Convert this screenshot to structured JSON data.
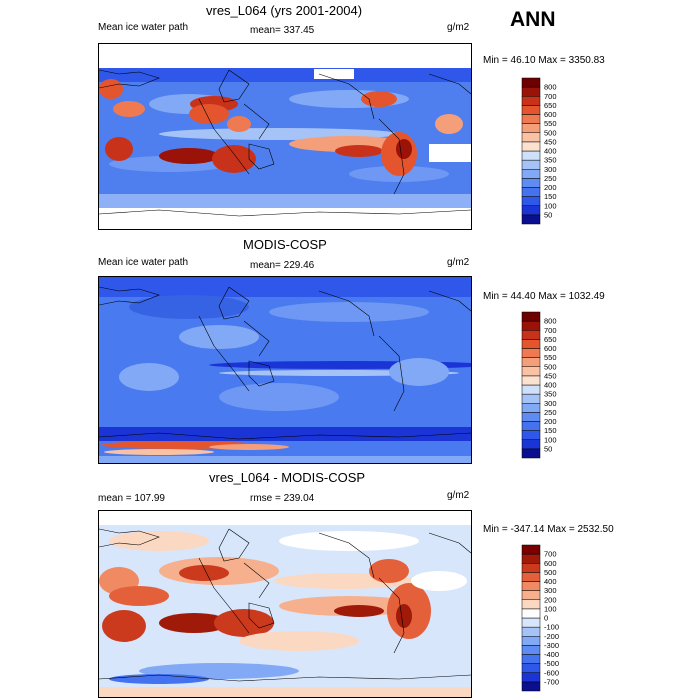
{
  "season": "ANN",
  "units": "g/m2",
  "panels": [
    {
      "title": "vres_L064 (yrs 2001-2004)",
      "left_label": "Mean ice water path",
      "mid_label": "mean= 337.45",
      "right_label": "g/m2",
      "minmax": "Min =  46.10 Max = 3350.83",
      "colorbar": {
        "levels": [
          "50",
          "100",
          "150",
          "200",
          "250",
          "300",
          "350",
          "400",
          "450",
          "500",
          "550",
          "600",
          "650",
          "700",
          "800"
        ],
        "colors": [
          "#0a0f8f",
          "#1a34d6",
          "#2f58ea",
          "#4572ee",
          "#5f8cf2",
          "#82a9f5",
          "#a6c3f8",
          "#cfe0fa",
          "#fbe2cf",
          "#f9c2a5",
          "#f59f7a",
          "#ef7a52",
          "#e4552e",
          "#c9321a",
          "#9a1208",
          "#6e0000"
        ]
      }
    },
    {
      "title": "MODIS-COSP",
      "left_label": "Mean ice water path",
      "mid_label": "mean= 229.46",
      "right_label": "g/m2",
      "minmax": "Min =  44.40 Max = 1032.49",
      "colorbar": {
        "levels": [
          "50",
          "100",
          "150",
          "200",
          "250",
          "300",
          "350",
          "400",
          "450",
          "500",
          "550",
          "600",
          "650",
          "700",
          "800"
        ],
        "colors": [
          "#0a0f8f",
          "#1a34d6",
          "#2f58ea",
          "#4572ee",
          "#5f8cf2",
          "#82a9f5",
          "#a6c3f8",
          "#cfe0fa",
          "#fbe2cf",
          "#f9c2a5",
          "#f59f7a",
          "#ef7a52",
          "#e4552e",
          "#c9321a",
          "#9a1208",
          "#6e0000"
        ]
      }
    },
    {
      "title": "vres_L064 - MODIS-COSP",
      "left_label": "mean = 107.99",
      "mid_label": "rmse = 239.04",
      "right_label": "g/m2",
      "minmax": "Min = -347.14 Max = 2532.50",
      "colorbar": {
        "levels": [
          "-700",
          "-600",
          "-500",
          "-400",
          "-300",
          "-200",
          "-100",
          "0",
          "100",
          "200",
          "300",
          "400",
          "500",
          "600",
          "700"
        ],
        "colors": [
          "#0a0f8f",
          "#1a34d6",
          "#2f58ea",
          "#4572ee",
          "#5f8cf2",
          "#82a9f5",
          "#a6c3f8",
          "#d8e6fb",
          "#ffffff",
          "#fbd8c2",
          "#f6b08e",
          "#ef8a62",
          "#e4603a",
          "#cc3a1e",
          "#a01a0a",
          "#7a0000"
        ]
      }
    }
  ],
  "chart_data": [
    {
      "type": "heatmap",
      "title": "vres_L064 (yrs 2001-2004)",
      "subtitle": "Mean ice water path",
      "mean": 337.45,
      "min": 46.1,
      "max": 3350.83,
      "units": "g/m2",
      "levels": [
        50,
        100,
        150,
        200,
        250,
        300,
        350,
        400,
        450,
        500,
        550,
        600,
        650,
        700,
        800
      ]
    },
    {
      "type": "heatmap",
      "title": "MODIS-COSP",
      "subtitle": "Mean ice water path",
      "mean": 229.46,
      "min": 44.4,
      "max": 1032.49,
      "units": "g/m2",
      "levels": [
        50,
        100,
        150,
        200,
        250,
        300,
        350,
        400,
        450,
        500,
        550,
        600,
        650,
        700,
        800
      ]
    },
    {
      "type": "heatmap",
      "title": "vres_L064 - MODIS-COSP",
      "mean": 107.99,
      "rmse": 239.04,
      "min": -347.14,
      "max": 2532.5,
      "units": "g/m2",
      "levels": [
        -700,
        -600,
        -500,
        -400,
        -300,
        -200,
        -100,
        0,
        100,
        200,
        300,
        400,
        500,
        600,
        700
      ]
    }
  ]
}
